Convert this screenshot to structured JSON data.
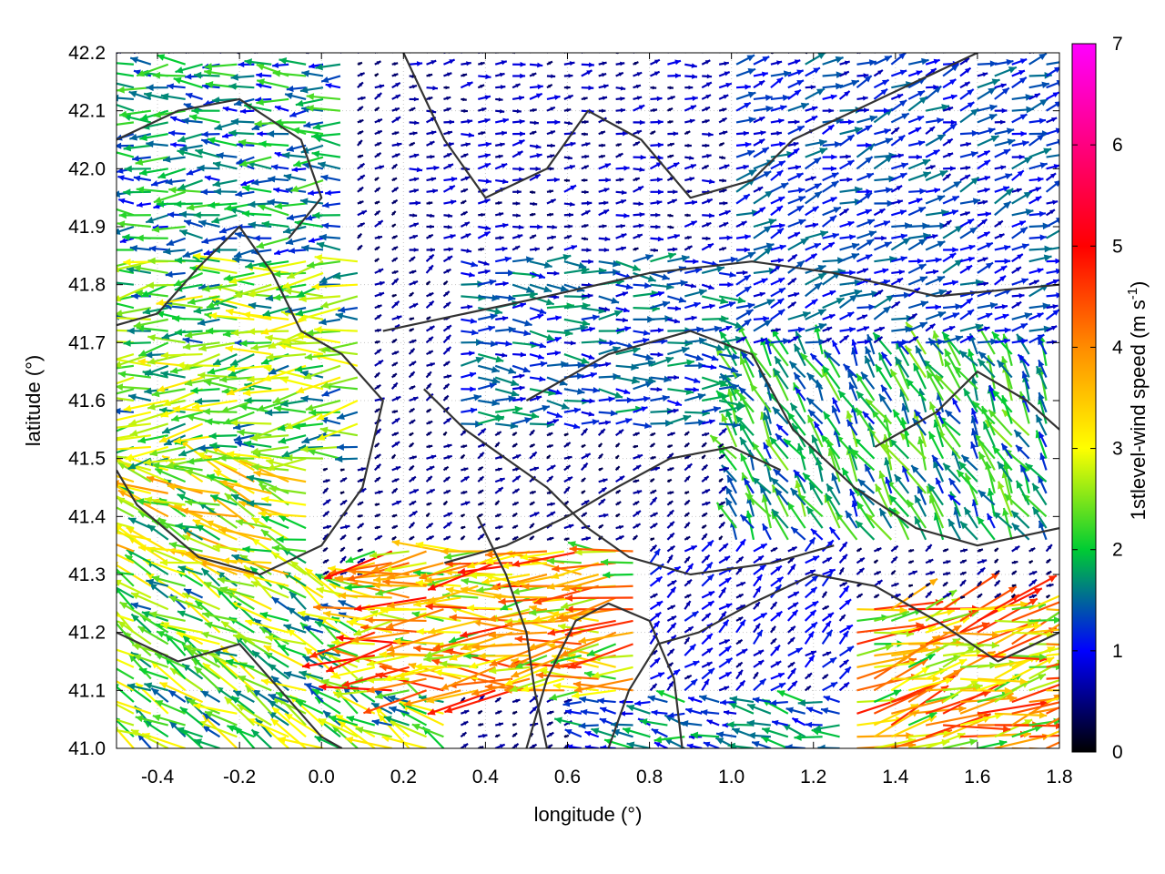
{
  "chart_data": {
    "type": "vector-field",
    "title": "",
    "xlabel": "longitude (°)",
    "ylabel": "latitude (°)",
    "xlim": [
      -0.5,
      1.8
    ],
    "ylim": [
      41.0,
      42.2
    ],
    "xticks": [
      "-0.4",
      "-0.2",
      "0.0",
      "0.2",
      "0.4",
      "0.6",
      "0.8",
      "1.0",
      "1.2",
      "1.4",
      "1.6",
      "1.8"
    ],
    "yticks": [
      "41.0",
      "41.1",
      "41.2",
      "41.3",
      "41.4",
      "41.5",
      "41.6",
      "41.7",
      "41.8",
      "41.9",
      "42.0",
      "42.1",
      "42.2"
    ],
    "grid": true,
    "colorbar": {
      "label_main": "1stlevel-wind speed (m s",
      "label_sup": "-1",
      "label_end": ")",
      "range": [
        0,
        7
      ],
      "ticks": [
        "0",
        "1",
        "2",
        "3",
        "4",
        "5",
        "6",
        "7"
      ],
      "colormap": [
        "#000000",
        "#0000ff",
        "#00cc33",
        "#ffff00",
        "#ff8c00",
        "#ff0000",
        "#ff00ff"
      ]
    },
    "vector_spacing": {
      "dlon": 0.042,
      "dlat": 0.02
    },
    "wind_regions": [
      {
        "lon": [
          -0.5,
          0.05
        ],
        "lat": [
          41.85,
          42.2
        ],
        "dir_deg": 180,
        "speed": 2.0
      },
      {
        "lon": [
          -0.5,
          0.1
        ],
        "lat": [
          41.5,
          41.85
        ],
        "dir_deg": 185,
        "speed": 2.8
      },
      {
        "lon": [
          -0.5,
          0.0
        ],
        "lat": [
          41.3,
          41.5
        ],
        "dir_deg": 160,
        "speed": 3.4
      },
      {
        "lon": [
          -0.5,
          0.3
        ],
        "lat": [
          41.0,
          41.3
        ],
        "dir_deg": 150,
        "speed": 2.8
      },
      {
        "lon": [
          0.1,
          0.8
        ],
        "lat": [
          41.1,
          41.35
        ],
        "dir_deg": 183,
        "speed": 4.3
      },
      {
        "lon": [
          0.3,
          1.0
        ],
        "lat": [
          41.55,
          41.85
        ],
        "dir_deg": 0,
        "speed": 1.6
      },
      {
        "lon": [
          0.2,
          1.0
        ],
        "lat": [
          41.85,
          42.2
        ],
        "dir_deg": 10,
        "speed": 0.8
      },
      {
        "lon": [
          1.0,
          1.8
        ],
        "lat": [
          41.7,
          42.2
        ],
        "dir_deg": 20,
        "speed": 1.4
      },
      {
        "lon": [
          1.0,
          1.8
        ],
        "lat": [
          41.35,
          41.7
        ],
        "dir_deg": 120,
        "speed": 2.2
      },
      {
        "lon": [
          0.8,
          1.3
        ],
        "lat": [
          41.1,
          41.35
        ],
        "dir_deg": 40,
        "speed": 1.0
      },
      {
        "lon": [
          1.3,
          1.8
        ],
        "lat": [
          41.0,
          41.25
        ],
        "dir_deg": 15,
        "speed": 4.2
      },
      {
        "lon": [
          0.6,
          1.3
        ],
        "lat": [
          41.0,
          41.1
        ],
        "dir_deg": 170,
        "speed": 1.8
      }
    ],
    "contours": [
      [
        [
          -0.5,
          41.73
        ],
        [
          -0.4,
          41.75
        ],
        [
          -0.3,
          41.83
        ],
        [
          -0.2,
          41.9
        ],
        [
          -0.12,
          41.82
        ],
        [
          -0.05,
          41.72
        ],
        [
          0.05,
          41.68
        ],
        [
          0.15,
          41.6
        ],
        [
          0.1,
          41.45
        ],
        [
          0.0,
          41.35
        ],
        [
          -0.15,
          41.3
        ],
        [
          -0.3,
          41.33
        ],
        [
          -0.45,
          41.42
        ],
        [
          -0.5,
          41.48
        ]
      ],
      [
        [
          -0.5,
          42.05
        ],
        [
          -0.35,
          42.1
        ],
        [
          -0.2,
          42.12
        ],
        [
          -0.05,
          42.05
        ],
        [
          0.0,
          41.95
        ],
        [
          -0.08,
          41.88
        ]
      ],
      [
        [
          0.15,
          41.72
        ],
        [
          0.35,
          41.75
        ],
        [
          0.55,
          41.78
        ],
        [
          0.8,
          41.82
        ],
        [
          1.05,
          41.84
        ],
        [
          1.25,
          41.82
        ],
        [
          1.5,
          41.78
        ],
        [
          1.8,
          41.8
        ]
      ],
      [
        [
          0.25,
          41.62
        ],
        [
          0.35,
          41.55
        ],
        [
          0.45,
          41.5
        ],
        [
          0.55,
          41.45
        ],
        [
          0.65,
          41.38
        ],
        [
          0.75,
          41.33
        ],
        [
          0.9,
          41.3
        ],
        [
          1.1,
          41.32
        ],
        [
          1.25,
          41.35
        ]
      ],
      [
        [
          0.5,
          41.6
        ],
        [
          0.7,
          41.68
        ],
        [
          0.9,
          41.72
        ],
        [
          1.05,
          41.68
        ],
        [
          1.15,
          41.55
        ],
        [
          1.3,
          41.45
        ],
        [
          1.45,
          41.38
        ],
        [
          1.6,
          41.35
        ],
        [
          1.8,
          41.38
        ]
      ],
      [
        [
          0.7,
          41.0
        ],
        [
          0.75,
          41.1
        ],
        [
          0.82,
          41.18
        ],
        [
          0.92,
          41.2
        ],
        [
          1.05,
          41.25
        ],
        [
          1.2,
          41.3
        ],
        [
          1.35,
          41.28
        ],
        [
          1.5,
          41.22
        ],
        [
          1.65,
          41.15
        ],
        [
          1.8,
          41.2
        ]
      ],
      [
        [
          0.5,
          41.0
        ],
        [
          0.55,
          41.12
        ],
        [
          0.62,
          41.22
        ],
        [
          0.7,
          41.25
        ],
        [
          0.8,
          41.22
        ],
        [
          0.86,
          41.12
        ],
        [
          0.88,
          41.0
        ]
      ],
      [
        [
          0.2,
          42.2
        ],
        [
          0.3,
          42.05
        ],
        [
          0.4,
          41.95
        ],
        [
          0.55,
          42.0
        ],
        [
          0.65,
          42.1
        ],
        [
          0.78,
          42.05
        ],
        [
          0.9,
          41.95
        ],
        [
          1.05,
          41.98
        ],
        [
          1.15,
          42.05
        ],
        [
          1.3,
          42.1
        ],
        [
          1.45,
          42.15
        ],
        [
          1.6,
          42.2
        ]
      ],
      [
        [
          0.3,
          41.32
        ],
        [
          0.45,
          41.35
        ],
        [
          0.6,
          41.4
        ],
        [
          0.72,
          41.45
        ],
        [
          0.85,
          41.5
        ],
        [
          1.0,
          41.52
        ],
        [
          1.12,
          41.48
        ]
      ],
      [
        [
          -0.5,
          41.2
        ],
        [
          -0.35,
          41.15
        ],
        [
          -0.2,
          41.18
        ],
        [
          -0.1,
          41.1
        ],
        [
          0.0,
          41.02
        ],
        [
          0.05,
          41.0
        ]
      ],
      [
        [
          1.35,
          41.52
        ],
        [
          1.5,
          41.58
        ],
        [
          1.6,
          41.65
        ],
        [
          1.72,
          41.6
        ],
        [
          1.8,
          41.55
        ]
      ],
      [
        [
          0.38,
          41.4
        ],
        [
          0.45,
          41.3
        ],
        [
          0.5,
          41.2
        ],
        [
          0.52,
          41.1
        ],
        [
          0.55,
          41.0
        ]
      ]
    ]
  }
}
